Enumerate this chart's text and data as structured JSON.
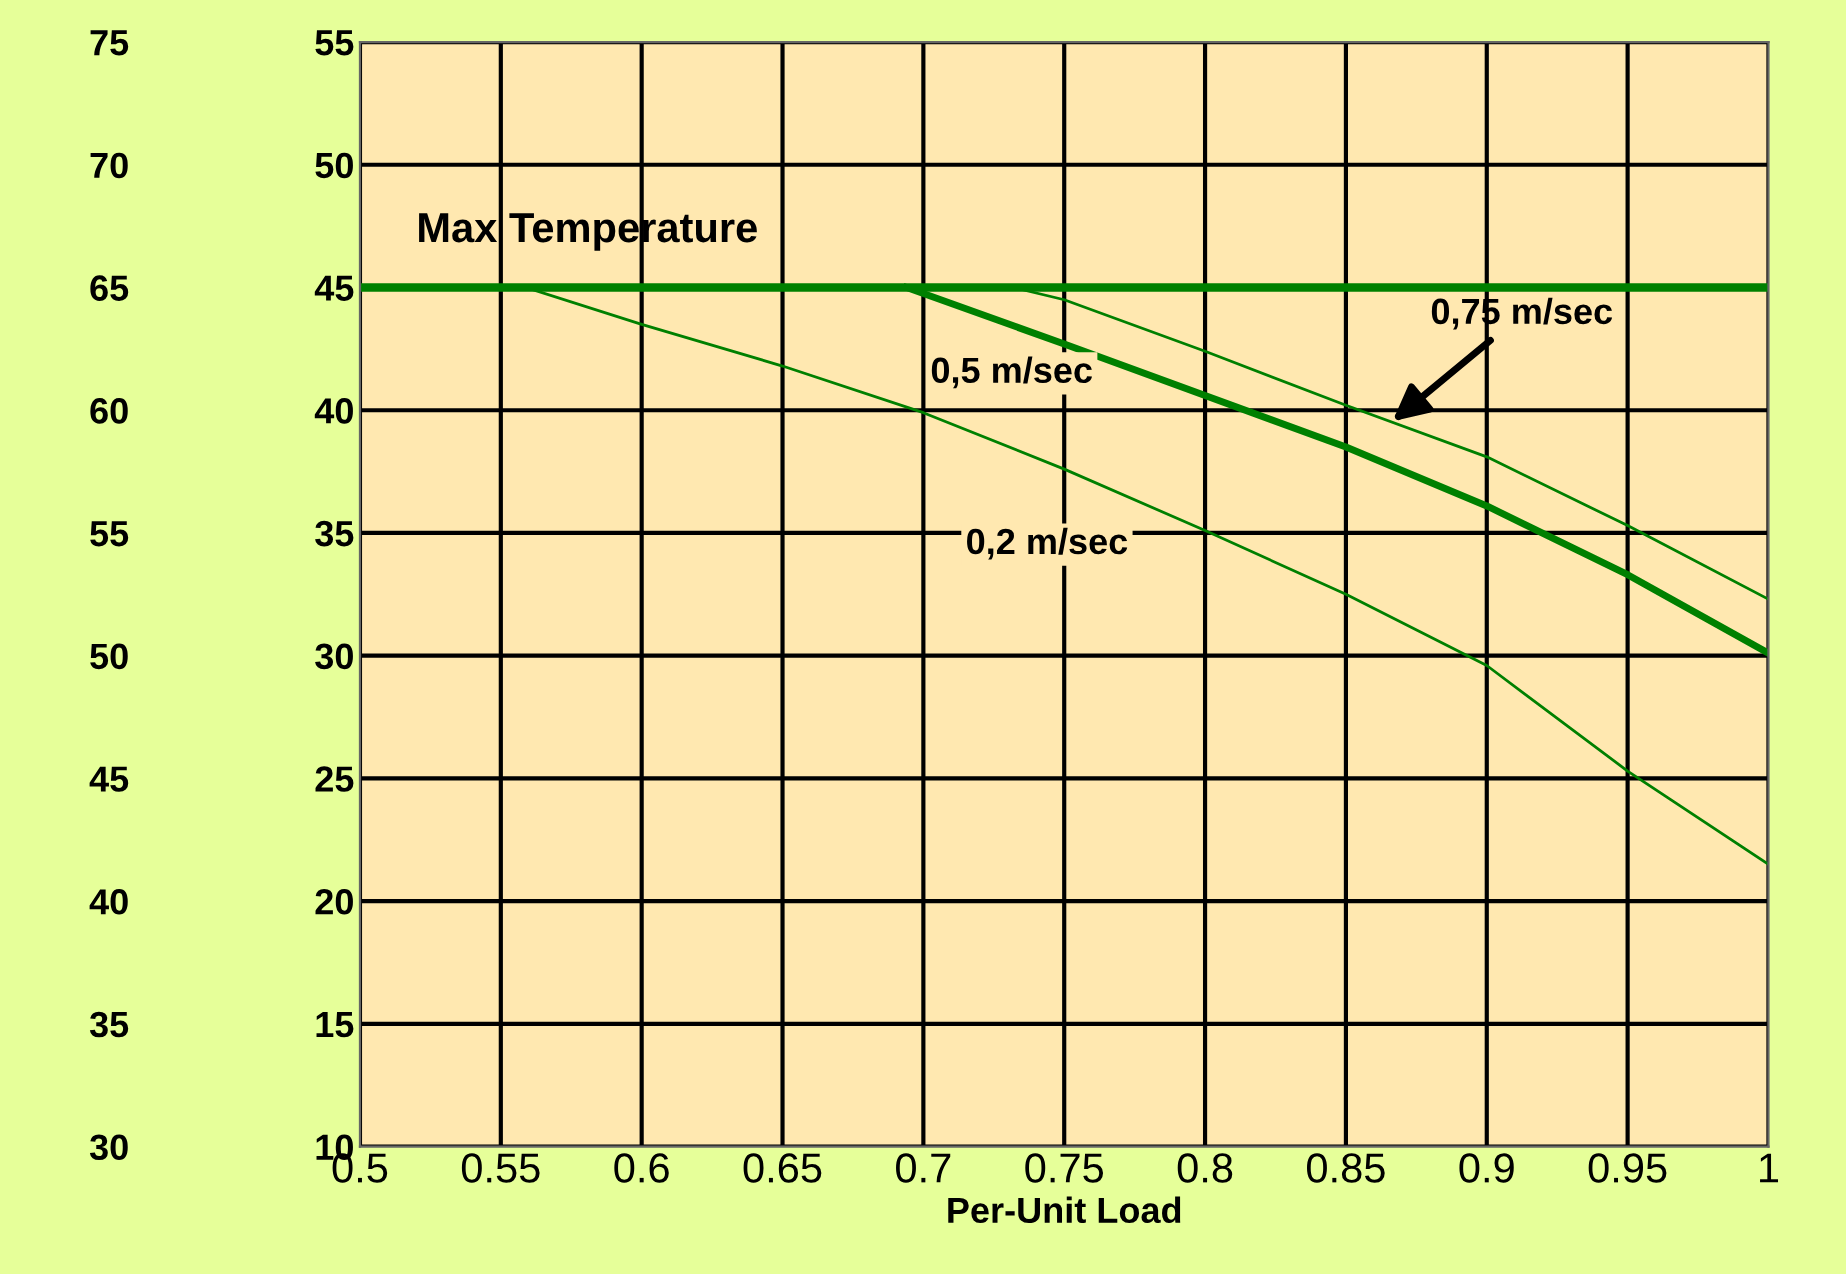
{
  "chart_data": {
    "type": "line",
    "xlabel": "Per-Unit Load",
    "xlim": [
      0.5,
      1
    ],
    "xticks": [
      0.5,
      0.55,
      0.6,
      0.65,
      0.7,
      0.75,
      0.8,
      0.85,
      0.9,
      0.95,
      1
    ],
    "ylim": [
      10,
      55
    ],
    "yticks": [
      10,
      15,
      20,
      25,
      30,
      35,
      40,
      45,
      50,
      55
    ],
    "y2lim": [
      30,
      75
    ],
    "y2ticks": [
      30,
      35,
      40,
      45,
      50,
      55,
      60,
      65,
      70,
      75
    ],
    "grid": true,
    "marker": "none",
    "line_style": "solid",
    "series": [
      {
        "color": "#008000",
        "x": [
          0.559,
          0.6,
          0.65,
          0.7,
          0.75,
          0.8,
          0.85,
          0.9,
          0.95,
          1
        ],
        "values": [
          45,
          43.5,
          41.8,
          39.9,
          37.6,
          35.1,
          32.5,
          29.6,
          25.3,
          21.5
        ]
      },
      {
        "color": "#008000",
        "x": [
          0.694,
          0.75,
          0.8,
          0.85,
          0.9,
          0.95,
          1
        ],
        "values": [
          45,
          42.7,
          40.6,
          38.5,
          36.1,
          33.3,
          30.1
        ]
      },
      {
        "color": "#008000",
        "x": [
          0.732,
          0.75,
          0.8,
          0.85,
          0.9,
          0.95,
          1
        ],
        "values": [
          45,
          44.5,
          42.4,
          40.2,
          38.1,
          35.3,
          32.3
        ]
      }
    ],
    "ref_lines": [
      {
        "axis": "y",
        "value": 45,
        "label": "Max Temperature",
        "color": "#008000"
      }
    ],
    "annotations": [
      "0,5 m/sec",
      "0,2 m/sec",
      {
        "text": "0,75 m/sec",
        "x": 0.865,
        "y": 39.4
      }
    ]
  }
}
